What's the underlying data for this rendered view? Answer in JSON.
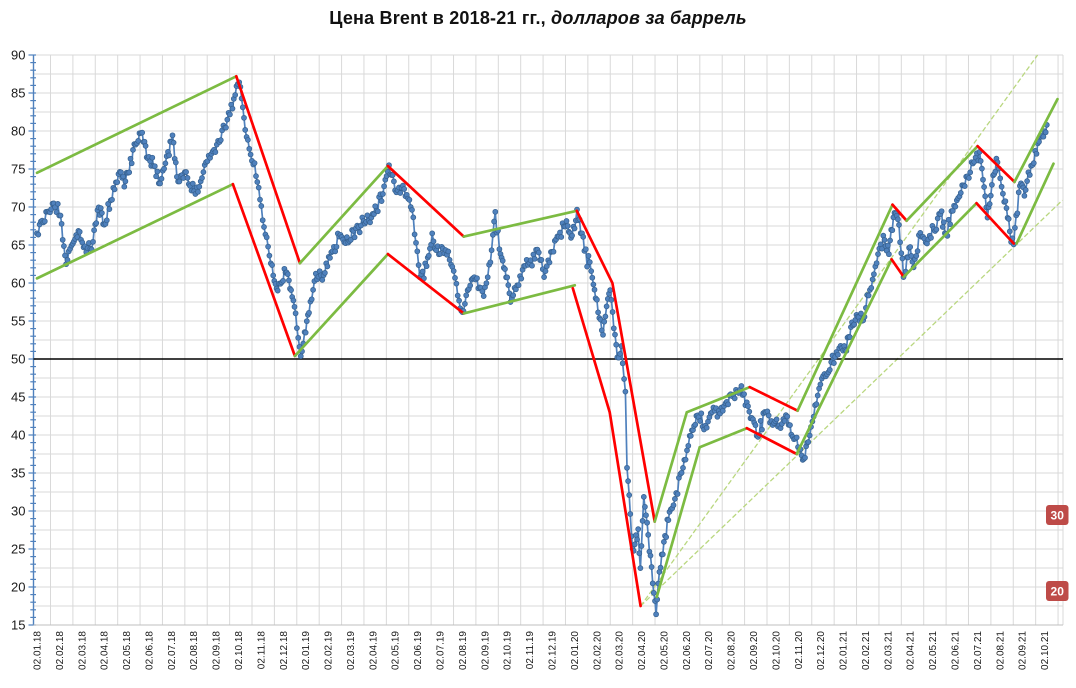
{
  "title": {
    "main": "Цена Brent в 2018-21 гг.,",
    "sub": " долларов за баррель"
  },
  "colors": {
    "series": "#4f81bd",
    "series_edge": "#36618f",
    "channel_up": "#7cbb42",
    "channel_down": "#ff0000",
    "fan_line": "#b9d77f",
    "reference": "#000000",
    "grid": "#d9d9d9",
    "axis": "#4f81bd",
    "axis_baseline": "#bfbfbf",
    "badge_fill": "#be4b48",
    "badge_text": "#ffffff",
    "label_text": "#1a1a1a"
  },
  "chart_data": {
    "type": "line",
    "title": "Цена Brent в 2018-21 гг., долларов за баррель",
    "xlabel": "",
    "ylabel": "",
    "ylim": [
      15,
      90
    ],
    "y_tick_step": 5,
    "y_minor_grid_step": 2.5,
    "grid": "on",
    "legend": "none",
    "x_unit": "months since 02.01.2018",
    "y_tick_labels": [
      "15",
      "20",
      "25",
      "30",
      "35",
      "40",
      "45",
      "50",
      "55",
      "60",
      "65",
      "70",
      "75",
      "80",
      "85",
      "90"
    ],
    "x_labels": [
      "02.01.18",
      "02.02.18",
      "02.03.18",
      "02.04.18",
      "02.05.18",
      "02.06.18",
      "02.07.18",
      "02.08.18",
      "02.09.18",
      "02.10.18",
      "02.11.18",
      "02.12.18",
      "02.01.19",
      "02.02.19",
      "02.03.19",
      "02.04.19",
      "02.05.19",
      "02.06.19",
      "02.07.19",
      "02.08.19",
      "02.09.19",
      "02.10.19",
      "02.11.19",
      "02.12.19",
      "02.01.20",
      "02.02.20",
      "02.03.20",
      "02.04.20",
      "02.05.20",
      "02.06.20",
      "02.07.20",
      "02.08.20",
      "02.09.20",
      "02.10.20",
      "02.11.20",
      "02.12.20",
      "02.01.21",
      "02.02.21",
      "02.03.21",
      "02.04.21",
      "02.05.21",
      "02.06.21",
      "02.07.21",
      "02.08.21",
      "02.09.21",
      "02.10.21"
    ],
    "reference_line": {
      "value": 50
    },
    "annotations": [
      {
        "label": "30",
        "value": 30
      },
      {
        "label": "20",
        "value": 20
      }
    ],
    "series_anchors": [
      [
        0,
        66.6
      ],
      [
        0.35,
        68.3
      ],
      [
        0.75,
        70.5
      ],
      [
        1.05,
        69.0
      ],
      [
        1.3,
        62.6
      ],
      [
        1.6,
        65.3
      ],
      [
        1.85,
        67.0
      ],
      [
        2.2,
        63.9
      ],
      [
        2.5,
        65.5
      ],
      [
        2.75,
        70.0
      ],
      [
        3.0,
        67.8
      ],
      [
        3.35,
        71.0
      ],
      [
        3.7,
        74.6
      ],
      [
        3.95,
        73.3
      ],
      [
        4.4,
        78.3
      ],
      [
        4.7,
        79.8
      ],
      [
        4.95,
        76.4
      ],
      [
        5.2,
        75.3
      ],
      [
        5.5,
        73.1
      ],
      [
        5.85,
        77.3
      ],
      [
        6.05,
        79.2
      ],
      [
        6.3,
        73.4
      ],
      [
        6.6,
        74.5
      ],
      [
        6.9,
        72.2
      ],
      [
        7.25,
        72.8
      ],
      [
        7.55,
        75.9
      ],
      [
        7.85,
        77.4
      ],
      [
        8.15,
        78.6
      ],
      [
        8.5,
        81.4
      ],
      [
        8.85,
        84.8
      ],
      [
        9.03,
        86.4
      ],
      [
        9.3,
        80.3
      ],
      [
        9.6,
        76.2
      ],
      [
        9.9,
        72.6
      ],
      [
        10.2,
        66.3
      ],
      [
        10.5,
        62.4
      ],
      [
        10.75,
        58.9
      ],
      [
        11.05,
        61.8
      ],
      [
        11.3,
        59.4
      ],
      [
        11.55,
        56.1
      ],
      [
        11.78,
        50.4
      ],
      [
        11.95,
        53.5
      ],
      [
        12.15,
        56.2
      ],
      [
        12.45,
        61.3
      ],
      [
        12.8,
        61.2
      ],
      [
        13.2,
        64.4
      ],
      [
        13.55,
        66.4
      ],
      [
        13.9,
        65.1
      ],
      [
        14.3,
        67.4
      ],
      [
        14.7,
        68.2
      ],
      [
        15.05,
        69.1
      ],
      [
        15.45,
        71.8
      ],
      [
        15.72,
        75.5
      ],
      [
        16.05,
        71.8
      ],
      [
        16.4,
        72.3
      ],
      [
        16.75,
        69.5
      ],
      [
        17.1,
        60.8
      ],
      [
        17.4,
        62.2
      ],
      [
        17.65,
        66.4
      ],
      [
        17.95,
        63.8
      ],
      [
        18.25,
        64.2
      ],
      [
        18.55,
        62.3
      ],
      [
        18.85,
        57.8
      ],
      [
        19.05,
        56.2
      ],
      [
        19.35,
        59.6
      ],
      [
        19.65,
        60.4
      ],
      [
        19.95,
        58.2
      ],
      [
        20.25,
        62.8
      ],
      [
        20.47,
        69.2
      ],
      [
        20.65,
        64.4
      ],
      [
        20.9,
        61.8
      ],
      [
        21.15,
        57.7
      ],
      [
        21.45,
        59.8
      ],
      [
        21.75,
        62.2
      ],
      [
        22.05,
        62.8
      ],
      [
        22.35,
        64.2
      ],
      [
        22.65,
        60.9
      ],
      [
        22.95,
        64.1
      ],
      [
        23.3,
        65.9
      ],
      [
        23.65,
        68.2
      ],
      [
        23.9,
        66.2
      ],
      [
        24.12,
        69.5
      ],
      [
        24.45,
        64.3
      ],
      [
        24.75,
        61.5
      ],
      [
        24.95,
        58.0
      ],
      [
        25.28,
        53.4
      ],
      [
        25.6,
        59.2
      ],
      [
        25.92,
        50.2
      ],
      [
        26.1,
        51.8
      ],
      [
        26.28,
        45.5
      ],
      [
        26.35,
        35.8
      ],
      [
        26.6,
        24.9
      ],
      [
        26.85,
        27.5
      ],
      [
        26.95,
        22.5
      ],
      [
        27.1,
        31.8
      ],
      [
        27.3,
        27.0
      ],
      [
        27.5,
        20.5
      ],
      [
        27.65,
        16.6
      ],
      [
        27.8,
        21.8
      ],
      [
        28.0,
        25.8
      ],
      [
        28.25,
        29.8
      ],
      [
        28.55,
        32.5
      ],
      [
        28.85,
        35.8
      ],
      [
        29.15,
        39.8
      ],
      [
        29.3,
        40.8
      ],
      [
        29.55,
        42.4
      ],
      [
        29.85,
        41.2
      ],
      [
        30.15,
        43.1
      ],
      [
        30.45,
        43.0
      ],
      [
        30.75,
        44.2
      ],
      [
        31.1,
        45.1
      ],
      [
        31.4,
        46.0
      ],
      [
        31.7,
        44.3
      ],
      [
        32.2,
        39.7
      ],
      [
        32.5,
        43.1
      ],
      [
        32.8,
        41.9
      ],
      [
        33.15,
        41.4
      ],
      [
        33.45,
        42.6
      ],
      [
        33.75,
        39.8
      ],
      [
        34.05,
        38.1
      ],
      [
        34.2,
        36.9
      ],
      [
        34.45,
        39.2
      ],
      [
        34.75,
        44.1
      ],
      [
        35.05,
        47.6
      ],
      [
        35.35,
        48.1
      ],
      [
        35.65,
        50.4
      ],
      [
        35.95,
        51.6
      ],
      [
        36.15,
        51.2
      ],
      [
        36.4,
        54.8
      ],
      [
        36.65,
        55.6
      ],
      [
        36.9,
        55.2
      ],
      [
        37.2,
        59.1
      ],
      [
        37.5,
        62.6
      ],
      [
        37.8,
        66.2
      ],
      [
        38.05,
        63.9
      ],
      [
        38.3,
        69.4
      ],
      [
        38.5,
        67.6
      ],
      [
        38.7,
        60.9
      ],
      [
        38.95,
        64.6
      ],
      [
        39.15,
        62.3
      ],
      [
        39.45,
        66.6
      ],
      [
        39.75,
        65.4
      ],
      [
        40.05,
        67.1
      ],
      [
        40.35,
        69.2
      ],
      [
        40.6,
        66.4
      ],
      [
        40.9,
        69.6
      ],
      [
        41.2,
        71.3
      ],
      [
        41.5,
        74.1
      ],
      [
        41.8,
        75.6
      ],
      [
        42.1,
        77.2
      ],
      [
        42.25,
        73.5
      ],
      [
        42.45,
        68.6
      ],
      [
        42.7,
        74.3
      ],
      [
        42.9,
        76.1
      ],
      [
        43.2,
        70.8
      ],
      [
        43.45,
        66.8
      ],
      [
        43.62,
        65.2
      ],
      [
        43.9,
        72.9
      ],
      [
        44.1,
        71.4
      ],
      [
        44.4,
        75.4
      ],
      [
        44.7,
        78.4
      ],
      [
        44.95,
        79.2
      ],
      [
        45.1,
        80.8
      ]
    ],
    "trend_channels": [
      {
        "trend": "up",
        "points": [
          [
            0,
            74.5
          ],
          [
            8.9,
            87.2
          ]
        ]
      },
      {
        "trend": "up",
        "points": [
          [
            0,
            60.6
          ],
          [
            8.75,
            73.0
          ]
        ]
      },
      {
        "trend": "down",
        "points": [
          [
            8.9,
            87.2
          ],
          [
            11.74,
            62.6
          ]
        ]
      },
      {
        "trend": "down",
        "points": [
          [
            8.75,
            73.0
          ],
          [
            11.52,
            50.4
          ]
        ]
      },
      {
        "trend": "up",
        "points": [
          [
            11.74,
            62.6
          ],
          [
            15.67,
            75.4
          ]
        ]
      },
      {
        "trend": "up",
        "points": [
          [
            11.52,
            50.4
          ],
          [
            15.67,
            63.8
          ]
        ]
      },
      {
        "trend": "down",
        "points": [
          [
            15.67,
            75.4
          ],
          [
            19.06,
            66.1
          ]
        ]
      },
      {
        "trend": "down",
        "points": [
          [
            15.67,
            63.8
          ],
          [
            19.06,
            56.0
          ]
        ]
      },
      {
        "trend": "up",
        "points": [
          [
            19.06,
            66.1
          ],
          [
            24.11,
            69.5
          ]
        ]
      },
      {
        "trend": "up",
        "points": [
          [
            19.06,
            56.0
          ],
          [
            24.02,
            59.7
          ]
        ]
      },
      {
        "trend": "down",
        "points": [
          [
            24.11,
            69.5
          ],
          [
            25.7,
            60.0
          ],
          [
            27.59,
            28.6
          ]
        ]
      },
      {
        "trend": "down",
        "points": [
          [
            23.93,
            59.3
          ],
          [
            25.58,
            43.0
          ],
          [
            26.96,
            17.5
          ]
        ]
      },
      {
        "trend": "up",
        "points": [
          [
            27.59,
            28.6
          ],
          [
            29.02,
            43.0
          ],
          [
            31.83,
            46.3
          ]
        ]
      },
      {
        "trend": "up",
        "points": [
          [
            27.68,
            18.7
          ],
          [
            29.6,
            38.4
          ],
          [
            31.7,
            40.9
          ]
        ]
      },
      {
        "trend": "down",
        "points": [
          [
            31.83,
            46.3
          ],
          [
            33.97,
            43.2
          ]
        ]
      },
      {
        "trend": "down",
        "points": [
          [
            31.7,
            40.9
          ],
          [
            33.93,
            37.5
          ]
        ]
      },
      {
        "trend": "up",
        "points": [
          [
            33.97,
            43.2
          ],
          [
            38.21,
            70.3
          ]
        ]
      },
      {
        "trend": "up",
        "points": [
          [
            33.93,
            37.5
          ],
          [
            38.17,
            63.1
          ]
        ]
      },
      {
        "trend": "down",
        "points": [
          [
            38.21,
            70.3
          ],
          [
            38.84,
            68.2
          ]
        ]
      },
      {
        "trend": "down",
        "points": [
          [
            38.17,
            63.1
          ],
          [
            38.71,
            60.8
          ]
        ]
      },
      {
        "trend": "up",
        "points": [
          [
            38.84,
            68.2
          ],
          [
            42.01,
            78.0
          ]
        ]
      },
      {
        "trend": "up",
        "points": [
          [
            38.71,
            60.8
          ],
          [
            41.96,
            70.5
          ]
        ]
      },
      {
        "trend": "down",
        "points": [
          [
            42.01,
            78.0
          ],
          [
            43.66,
            73.3
          ]
        ]
      },
      {
        "trend": "down",
        "points": [
          [
            41.96,
            70.5
          ],
          [
            43.62,
            65.2
          ]
        ]
      },
      {
        "trend": "up",
        "points": [
          [
            43.66,
            73.3
          ],
          [
            45.58,
            84.2
          ]
        ]
      },
      {
        "trend": "up",
        "points": [
          [
            43.75,
            65.2
          ],
          [
            45.4,
            75.7
          ]
        ]
      }
    ],
    "fan_lines": [
      {
        "points": [
          [
            26.96,
            17.5
          ],
          [
            44.69,
            90.0
          ]
        ]
      },
      {
        "points": [
          [
            26.96,
            17.5
          ],
          [
            45.8,
            70.9
          ]
        ]
      }
    ]
  }
}
